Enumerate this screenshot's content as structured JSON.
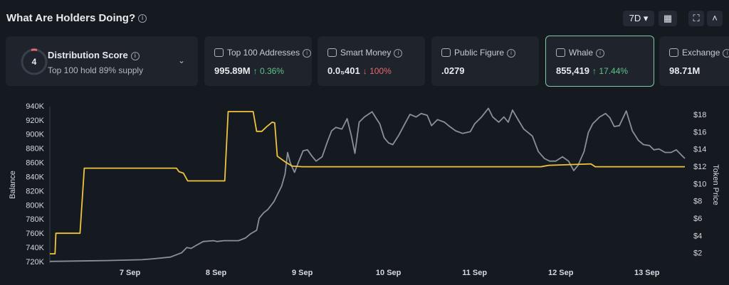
{
  "header": {
    "title": "What Are Holders Doing?",
    "range": "7D"
  },
  "distribution": {
    "score": "4",
    "title": "Distribution Score",
    "subtitle": "Top 100 hold 89% supply"
  },
  "cards": [
    {
      "label": "Top 100 Addresses",
      "value": "995.89M",
      "change": "0.36%",
      "direction": "up"
    },
    {
      "label": "Smart Money",
      "value": "0.0₅401",
      "change": "100%",
      "direction": "down"
    },
    {
      "label": "Public Figure",
      "value": ".0279"
    },
    {
      "label": "Whale",
      "value": "855,419",
      "change": "17.44%",
      "direction": "up"
    },
    {
      "label": "Exchange",
      "value": "98.71M"
    }
  ],
  "chart_data": {
    "type": "line",
    "ylabel": "Balance",
    "y2label": "Token Price",
    "xlim": [
      6.07,
      13.44
    ],
    "xticks": [
      {
        "value": 7,
        "label": "7 Sep"
      },
      {
        "value": 8,
        "label": "8 Sep"
      },
      {
        "value": 9,
        "label": "9 Sep"
      },
      {
        "value": 10,
        "label": "10 Sep"
      },
      {
        "value": 11,
        "label": "11 Sep"
      },
      {
        "value": 12,
        "label": "12 Sep"
      },
      {
        "value": 13,
        "label": "13 Sep"
      }
    ],
    "ylim": [
      720000,
      940000
    ],
    "yticks": [
      {
        "value": 720000,
        "label": "720K"
      },
      {
        "value": 740000,
        "label": "740K"
      },
      {
        "value": 760000,
        "label": "760K"
      },
      {
        "value": 780000,
        "label": "780K"
      },
      {
        "value": 800000,
        "label": "800K"
      },
      {
        "value": 820000,
        "label": "820K"
      },
      {
        "value": 840000,
        "label": "840K"
      },
      {
        "value": 860000,
        "label": "860K"
      },
      {
        "value": 880000,
        "label": "880K"
      },
      {
        "value": 900000,
        "label": "900K"
      },
      {
        "value": 920000,
        "label": "920K"
      },
      {
        "value": 940000,
        "label": "940K"
      }
    ],
    "y2lim": [
      1,
      19
    ],
    "y2ticks": [
      {
        "value": 2,
        "label": "$2"
      },
      {
        "value": 4,
        "label": "$4"
      },
      {
        "value": 6,
        "label": "$6"
      },
      {
        "value": 8,
        "label": "$8"
      },
      {
        "value": 10,
        "label": "$10"
      },
      {
        "value": 12,
        "label": "$12"
      },
      {
        "value": 14,
        "label": "$14"
      },
      {
        "value": 16,
        "label": "$16"
      },
      {
        "value": 18,
        "label": "$18"
      }
    ],
    "grid": false,
    "series": [
      {
        "color": "#f0c43c",
        "x": [
          6.07,
          6.13,
          6.14,
          6.42,
          6.47,
          7.54,
          7.57,
          7.62,
          7.67,
          7.72,
          8.1,
          8.14,
          8.43,
          8.47,
          8.53,
          8.59,
          8.65,
          8.68,
          8.71,
          8.8,
          8.88,
          9.0,
          11.77,
          11.86,
          12.35,
          12.4,
          13.44
        ],
        "values": [
          732000,
          732000,
          761000,
          761000,
          853000,
          853000,
          848000,
          846000,
          835000,
          835000,
          835000,
          933000,
          933000,
          905000,
          905000,
          912000,
          918000,
          917000,
          870000,
          862000,
          856000,
          855000,
          855000,
          857000,
          859000,
          855000,
          855000
        ]
      },
      {
        "color": "#8a9099",
        "axis": "y2",
        "x": [
          6.07,
          6.73,
          7.14,
          7.27,
          7.47,
          7.6,
          7.66,
          7.71,
          7.76,
          7.85,
          7.97,
          8.01,
          8.09,
          8.26,
          8.34,
          8.4,
          8.47,
          8.5,
          8.55,
          8.6,
          8.67,
          8.71,
          8.76,
          8.8,
          8.83,
          8.86,
          8.91,
          8.96,
          9.01,
          9.06,
          9.11,
          9.16,
          9.23,
          9.29,
          9.34,
          9.39,
          9.46,
          9.52,
          9.57,
          9.61,
          9.66,
          9.72,
          9.81,
          9.86,
          9.9,
          9.95,
          10.0,
          10.05,
          10.12,
          10.19,
          10.25,
          10.32,
          10.38,
          10.45,
          10.5,
          10.57,
          10.65,
          10.71,
          10.78,
          10.86,
          10.95,
          11.0,
          11.08,
          11.16,
          11.21,
          11.28,
          11.34,
          11.39,
          11.44,
          11.51,
          11.57,
          11.67,
          11.74,
          11.81,
          11.87,
          11.94,
          12.02,
          12.09,
          12.15,
          12.2,
          12.27,
          12.32,
          12.37,
          12.45,
          12.52,
          12.57,
          12.62,
          12.68,
          12.76,
          12.83,
          12.9,
          12.96,
          13.03,
          13.08,
          13.14,
          13.21,
          13.28,
          13.34,
          13.39,
          13.44
        ],
        "values": [
          1.1,
          1.2,
          1.3,
          1.4,
          1.6,
          2.1,
          2.7,
          2.6,
          2.9,
          3.4,
          3.5,
          3.4,
          3.5,
          3.5,
          3.8,
          4.3,
          4.7,
          6.1,
          6.7,
          7.1,
          8.0,
          8.8,
          9.8,
          11.2,
          13.7,
          12.5,
          11.4,
          12.7,
          13.9,
          14.0,
          13.3,
          12.7,
          13.2,
          14.9,
          16.2,
          16.6,
          16.4,
          17.6,
          15.6,
          13.6,
          17.2,
          17.8,
          18.4,
          17.6,
          17.0,
          15.4,
          14.8,
          14.6,
          15.7,
          17.0,
          18.1,
          17.8,
          18.2,
          18.0,
          16.8,
          17.5,
          17.2,
          16.7,
          16.2,
          15.9,
          16.1,
          17.0,
          17.8,
          18.8,
          17.8,
          17.2,
          17.8,
          17.2,
          18.6,
          17.4,
          16.4,
          15.6,
          13.8,
          13.0,
          12.7,
          12.7,
          13.2,
          12.7,
          11.6,
          12.2,
          13.8,
          16.0,
          17.0,
          17.8,
          18.2,
          17.7,
          16.7,
          16.8,
          18.5,
          16.2,
          15.1,
          14.6,
          14.5,
          14.0,
          14.1,
          13.7,
          13.7,
          14.0,
          13.5,
          13.0
        ]
      }
    ]
  }
}
